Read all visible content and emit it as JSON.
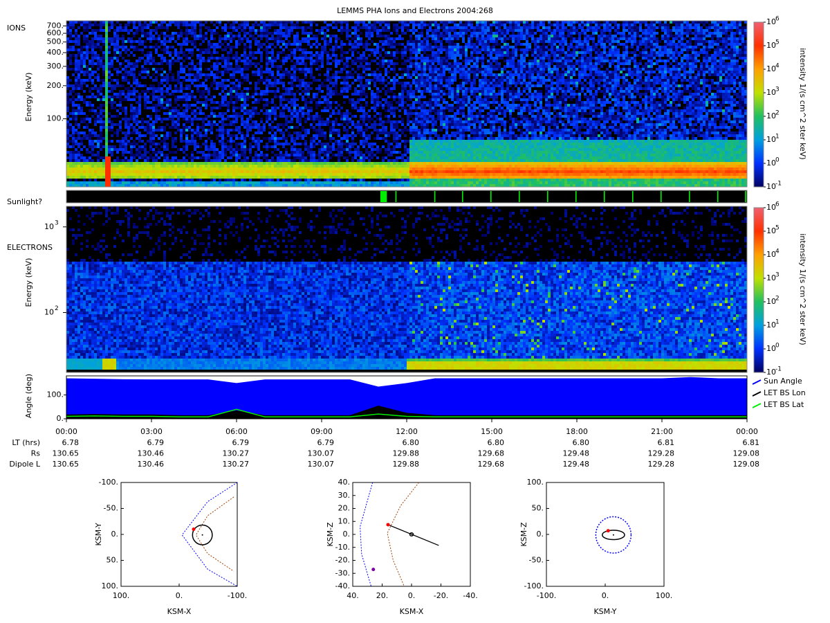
{
  "title": "LEMMS PHA Ions and Electrons  2004:268",
  "chart_data": [
    {
      "type": "heatmap",
      "label": "IONS",
      "ylabel": "Energy (keV)",
      "log": true,
      "ylim": [
        24,
        780
      ],
      "yticks": [
        {
          "value": 100,
          "label": "100."
        },
        {
          "value": 200,
          "label": "200."
        },
        {
          "value": 300,
          "label": "300."
        },
        {
          "value": 400,
          "label": "400."
        },
        {
          "value": 500,
          "label": "500."
        },
        {
          "value": 600,
          "label": "600."
        },
        {
          "value": 700,
          "label": "700."
        }
      ],
      "colorbar": {
        "label": "intensity 1/(s cm^2 ster keV)",
        "lim": [
          0.1,
          1000000
        ],
        "ticks": [
          {
            "value": 0.1,
            "label": "10",
            "exponent": "-1"
          },
          {
            "value": 1,
            "label": "10",
            "exponent": "0"
          },
          {
            "value": 10,
            "label": "10",
            "exponent": "1"
          },
          {
            "value": 100,
            "label": "10",
            "exponent": "2"
          },
          {
            "value": 1000,
            "label": "10",
            "exponent": "3"
          },
          {
            "value": 10000,
            "label": "10",
            "exponent": "4"
          },
          {
            "value": 100000,
            "label": "10",
            "exponent": "5"
          },
          {
            "value": 1000000,
            "label": "10",
            "exponent": "6"
          }
        ]
      }
    },
    {
      "type": "timeline",
      "label": "Sunlight?",
      "color": "#00ee00",
      "intervals": [
        [
          11.07,
          11.3
        ],
        [
          11.6,
          11.64
        ],
        [
          12.97,
          13.01
        ],
        [
          13.95,
          13.99
        ],
        [
          14.95,
          14.99
        ],
        [
          15.95,
          15.99
        ],
        [
          16.95,
          16.99
        ],
        [
          17.95,
          17.99
        ],
        [
          18.95,
          18.99
        ],
        [
          19.95,
          19.99
        ],
        [
          20.95,
          20.99
        ],
        [
          21.95,
          21.99
        ],
        [
          22.95,
          22.99
        ],
        [
          23.93,
          23.97
        ]
      ]
    },
    {
      "type": "heatmap",
      "label": "ELECTRONS",
      "ylabel": "Energy (keV)",
      "log": true,
      "ylim": [
        20,
        1740
      ],
      "yticks": [
        {
          "value": 100,
          "label": "10",
          "exponent": "2"
        },
        {
          "value": 1000,
          "label": "10",
          "exponent": "3"
        }
      ],
      "colorbar": {
        "label": "intensity 1/(s cm^2 ster keV)",
        "lim": [
          0.1,
          1000000
        ],
        "ticks": [
          {
            "value": 0.1,
            "label": "10",
            "exponent": "-1"
          },
          {
            "value": 1,
            "label": "10",
            "exponent": "0"
          },
          {
            "value": 10,
            "label": "10",
            "exponent": "1"
          },
          {
            "value": 100,
            "label": "10",
            "exponent": "2"
          },
          {
            "value": 1000,
            "label": "10",
            "exponent": "3"
          },
          {
            "value": 10000,
            "label": "10",
            "exponent": "4"
          },
          {
            "value": 100000,
            "label": "10",
            "exponent": "5"
          },
          {
            "value": 1000000,
            "label": "10",
            "exponent": "6"
          }
        ]
      }
    },
    {
      "type": "area",
      "ylabel": "Angle (deg)",
      "ylim": [
        0,
        180
      ],
      "xlim": [
        0,
        24
      ],
      "yticks": [
        {
          "value": 0,
          "label": "0."
        },
        {
          "value": 100,
          "label": "100."
        }
      ],
      "xticks": [
        {
          "value": 0,
          "label": "00:00"
        },
        {
          "value": 3,
          "label": "03:00"
        },
        {
          "value": 6,
          "label": "06:00"
        },
        {
          "value": 9,
          "label": "09:00"
        },
        {
          "value": 12,
          "label": "12:00"
        },
        {
          "value": 15,
          "label": "15:00"
        },
        {
          "value": 18,
          "label": "18:00"
        },
        {
          "value": 21,
          "label": "21:00"
        },
        {
          "value": 24,
          "label": "00:00"
        }
      ],
      "x": [
        0,
        1,
        2,
        3,
        4,
        5,
        6,
        7,
        8,
        9,
        10,
        11,
        12,
        13,
        14,
        15,
        16,
        17,
        18,
        19,
        20,
        21,
        22,
        23,
        24
      ],
      "series": [
        {
          "name": "Sun Angle",
          "color": "#0000ff",
          "values": [
            170,
            168,
            166,
            165,
            165,
            165,
            150,
            165,
            165,
            165,
            165,
            135,
            150,
            170,
            170,
            170,
            170,
            170,
            170,
            170,
            170,
            170,
            175,
            170,
            170
          ]
        },
        {
          "name": "LET BS Lon",
          "color": "#000000",
          "values": [
            18,
            20,
            18,
            18,
            15,
            15,
            35,
            15,
            15,
            15,
            15,
            55,
            25,
            15,
            15,
            15,
            15,
            15,
            15,
            15,
            15,
            15,
            15,
            15,
            15
          ]
        },
        {
          "name": "LET BS Lat",
          "color": "#00ee00",
          "values": [
            10,
            12,
            10,
            10,
            8,
            8,
            40,
            8,
            8,
            8,
            8,
            20,
            10,
            8,
            8,
            8,
            8,
            8,
            8,
            8,
            8,
            8,
            8,
            8,
            8
          ]
        }
      ]
    },
    {
      "type": "orbit",
      "xlabel": "KSM-X",
      "ylabel": "KSM-Y",
      "xlim": [
        100,
        -100
      ],
      "ylim": [
        100,
        -100
      ],
      "xticks": [
        {
          "value": 100,
          "label": "100."
        },
        {
          "value": 0,
          "label": "0."
        },
        {
          "value": -100,
          "label": "-100."
        }
      ],
      "yticks": [
        {
          "value": -100,
          "label": "-100."
        },
        {
          "value": -50,
          "label": "-50."
        },
        {
          "value": 0,
          "label": "0."
        },
        {
          "value": 50,
          "label": "50."
        },
        {
          "value": 100,
          "label": "100."
        }
      ],
      "curves": [
        {
          "color": "#0000ff",
          "dashed": true,
          "x": [
            -100,
            -49,
            -5,
            -49,
            -100
          ],
          "y": [
            -100,
            -63,
            1,
            67,
            100
          ]
        },
        {
          "color": "#a04000",
          "dashed": true,
          "x": [
            -94,
            -49,
            -29,
            -49,
            -94
          ],
          "y": [
            -72,
            -36,
            1,
            37,
            71
          ]
        }
      ],
      "ellipses": [
        {
          "color": "#000000",
          "dashed": false,
          "cx": -40,
          "cy": 1,
          "rx": 17,
          "ry": 19
        }
      ],
      "points": [
        {
          "color": "#000000",
          "x": -40,
          "y": 1
        },
        {
          "color": "#ff0000",
          "x": -25,
          "y": -10
        }
      ]
    },
    {
      "type": "orbit",
      "xlabel": "KSM-X",
      "ylabel": "KSM-Z",
      "xlim": [
        40,
        -40
      ],
      "ylim": [
        -40,
        40
      ],
      "xticks": [
        {
          "value": 40,
          "label": "40."
        },
        {
          "value": 20,
          "label": "20."
        },
        {
          "value": 0,
          "label": "0."
        },
        {
          "value": -20,
          "label": "-20."
        },
        {
          "value": -40,
          "label": "-40."
        }
      ],
      "yticks": [
        {
          "value": 40,
          "label": "40."
        },
        {
          "value": 30,
          "label": "30."
        },
        {
          "value": 20,
          "label": "20."
        },
        {
          "value": 10,
          "label": "10."
        },
        {
          "value": 0,
          "label": "0."
        },
        {
          "value": -10,
          "label": "-10."
        },
        {
          "value": -20,
          "label": "-20."
        },
        {
          "value": -30,
          "label": "-30."
        },
        {
          "value": -40,
          "label": "-40."
        }
      ],
      "curves": [
        {
          "color": "#0000ff",
          "dashed": true,
          "x": [
            26.5,
            35,
            34,
            27.5
          ],
          "y": [
            40,
            6,
            -15,
            -40
          ]
        },
        {
          "color": "#a04000",
          "dashed": true,
          "x": [
            -5,
            7.5,
            16.5,
            12.5,
            5
          ],
          "y": [
            40,
            22,
            1,
            -20,
            -40
          ]
        },
        {
          "color": "#000000",
          "dashed": false,
          "x": [
            16,
            -18.5
          ],
          "y": [
            7.5,
            -8.5
          ]
        }
      ],
      "ellipses": [
        {
          "color": "#000000",
          "dashed": false,
          "cx": 0,
          "cy": 0,
          "rx": 1.2,
          "ry": 1.2
        }
      ],
      "points": [
        {
          "color": "#ff0000",
          "x": 16,
          "y": 7.5
        },
        {
          "color": "#8000a0",
          "x": 26,
          "y": -27
        }
      ]
    },
    {
      "type": "orbit",
      "xlabel": "KSM-Y",
      "ylabel": "KSM-Z",
      "xlim": [
        -100,
        100
      ],
      "ylim": [
        -100,
        100
      ],
      "xticks": [
        {
          "value": -100,
          "label": "-100."
        },
        {
          "value": 0,
          "label": "0."
        },
        {
          "value": 100,
          "label": "100."
        }
      ],
      "yticks": [
        {
          "value": 100,
          "label": "100."
        },
        {
          "value": 50,
          "label": "50."
        },
        {
          "value": 0,
          "label": "0."
        },
        {
          "value": -50,
          "label": "-50."
        },
        {
          "value": -100,
          "label": "-100."
        }
      ],
      "curves": [],
      "ellipses": [
        {
          "color": "#0000ff",
          "dashed": true,
          "cx": 14,
          "cy": -1,
          "rx": 30,
          "ry": 35
        },
        {
          "color": "#000000",
          "dashed": false,
          "cx": 14,
          "cy": -1,
          "rx": 19,
          "ry": 9
        }
      ],
      "points": [
        {
          "color": "#000000",
          "x": 14,
          "y": -1
        },
        {
          "color": "#ff0000",
          "x": 5,
          "y": 7
        }
      ]
    }
  ],
  "ephemeris": {
    "rows": [
      {
        "label": "LT (hrs)",
        "values": [
          "6.78",
          "6.79",
          "6.79",
          "6.79",
          "6.80",
          "6.80",
          "6.80",
          "6.81",
          "6.81"
        ]
      },
      {
        "label": "Rs",
        "values": [
          "130.65",
          "130.46",
          "130.27",
          "130.07",
          "129.88",
          "129.68",
          "129.48",
          "129.28",
          "129.08"
        ]
      },
      {
        "label": "Dipole L",
        "values": [
          "130.65",
          "130.46",
          "130.27",
          "130.07",
          "129.88",
          "129.68",
          "129.48",
          "129.28",
          "129.08"
        ]
      }
    ]
  }
}
